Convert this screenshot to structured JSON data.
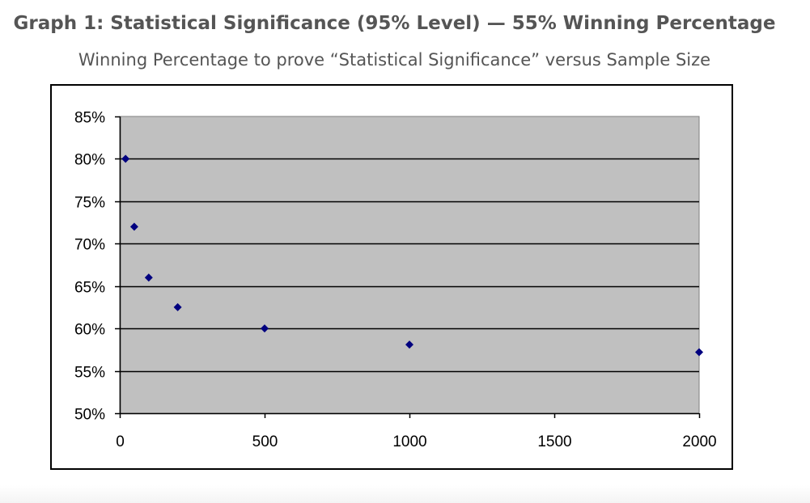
{
  "header": {
    "title": "Graph 1: Statistical Significance (95% Level) — 55% Winning Percentage",
    "subtitle": "Winning Percentage to prove “Statistical Significance” versus Sample Size"
  },
  "chart_data": {
    "type": "scatter",
    "title": "Graph 1: Statistical Significance (95% Level) — 55% Winning Percentage",
    "subtitle": "Winning Percentage to prove “Statistical Significance” versus Sample Size",
    "xlabel": "",
    "ylabel": "",
    "xlim": [
      0,
      2000
    ],
    "ylim": [
      0.5,
      0.85
    ],
    "x_ticks": [
      0,
      500,
      1000,
      1500,
      2000
    ],
    "x_tick_labels": [
      "0",
      "500",
      "1000",
      "1500",
      "2000"
    ],
    "y_ticks": [
      0.5,
      0.55,
      0.6,
      0.65,
      0.7,
      0.75,
      0.8,
      0.85
    ],
    "y_tick_labels": [
      "50%",
      "55%",
      "60%",
      "65%",
      "70%",
      "75%",
      "80%",
      "85%"
    ],
    "grid": "horizontal",
    "legend": "none",
    "series": [
      {
        "x": [
          20,
          50,
          100,
          200,
          500,
          1000,
          2000
        ],
        "y": [
          0.8,
          0.72,
          0.66,
          0.625,
          0.6,
          0.581,
          0.572
        ]
      }
    ],
    "colors": {
      "plot_background": "#c0c0c0",
      "marker": "#00007f",
      "gridline": "#000000",
      "axis": "#000000"
    }
  }
}
